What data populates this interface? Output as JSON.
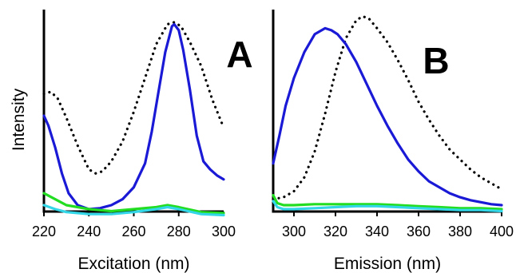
{
  "figure": {
    "ylabel": "Intensity"
  },
  "chart_data": [
    {
      "type": "line",
      "panel_label": "A",
      "xlabel": "Excitation (nm)",
      "ylabel": "Intensity",
      "xlim": [
        220,
        300
      ],
      "ylim": [
        0,
        100
      ],
      "xticks": [
        220,
        240,
        260,
        280,
        300
      ],
      "series": [
        {
          "color": "#000000",
          "dash": "dotted",
          "x": [
            220,
            223,
            226,
            230,
            235,
            240,
            243,
            246,
            250,
            255,
            260,
            265,
            270,
            275,
            278,
            281,
            285,
            290,
            295,
            300
          ],
          "y": [
            58,
            59,
            56,
            46,
            32,
            20,
            18,
            19,
            24,
            34,
            49,
            66,
            83,
            93,
            94,
            92,
            84,
            72,
            55,
            41
          ]
        },
        {
          "color": "#1a1ad6",
          "dash": "solid",
          "x": [
            220,
            222,
            225,
            228,
            231,
            235,
            240,
            245,
            250,
            255,
            260,
            265,
            268,
            271,
            274,
            277,
            278,
            280,
            282,
            285,
            288,
            291,
            294,
            297,
            300
          ],
          "y": [
            47,
            42,
            31,
            18,
            8,
            2,
            0,
            0.5,
            2,
            5,
            11,
            23,
            39,
            59,
            79,
            92,
            93,
            90,
            80,
            60,
            37,
            24,
            20,
            17,
            15
          ]
        },
        {
          "color": "#22dd22",
          "dash": "solid",
          "x": [
            220,
            225,
            230,
            240,
            250,
            260,
            270,
            275,
            280,
            290,
            300
          ],
          "y": [
            8,
            5,
            2,
            0,
            -1,
            0,
            1,
            2,
            1,
            -1.5,
            -2
          ]
        },
        {
          "color": "#33d6e6",
          "dash": "solid",
          "x": [
            220,
            225,
            230,
            240,
            250,
            260,
            270,
            275,
            280,
            290,
            300
          ],
          "y": [
            2,
            0,
            -1.5,
            -2.5,
            -2.5,
            -1.5,
            0,
            1,
            0,
            -2.5,
            -3
          ]
        }
      ]
    },
    {
      "type": "line",
      "panel_label": "B",
      "xlabel": "Emission (nm)",
      "ylabel": "",
      "xlim": [
        290,
        400
      ],
      "ylim": [
        0,
        100
      ],
      "xticks": [
        300,
        320,
        340,
        360,
        380,
        400
      ],
      "series": [
        {
          "color": "#000000",
          "dash": "dotted",
          "x": [
            290,
            295,
            300,
            305,
            310,
            315,
            320,
            325,
            330,
            333,
            336,
            340,
            345,
            350,
            355,
            360,
            365,
            370,
            375,
            380,
            385,
            390,
            395,
            400
          ],
          "y": [
            5,
            6,
            9,
            16,
            29,
            48,
            69,
            86,
            95,
            97,
            96,
            91,
            84,
            75,
            65,
            54,
            45,
            37,
            30,
            25,
            20,
            16,
            13,
            10
          ]
        },
        {
          "color": "#1a1ad6",
          "dash": "solid",
          "x": [
            290,
            293,
            296,
            300,
            305,
            310,
            315,
            318,
            321,
            325,
            330,
            335,
            340,
            345,
            350,
            355,
            360,
            365,
            370,
            375,
            380,
            385,
            390,
            395,
            400
          ],
          "y": [
            23,
            37,
            52,
            66,
            79,
            88,
            91,
            90,
            88,
            83,
            74,
            63,
            52,
            42,
            33,
            25,
            19,
            14,
            11,
            8,
            6,
            4.5,
            3.5,
            2.5,
            2
          ]
        },
        {
          "color": "#22dd22",
          "dash": "solid",
          "x": [
            290,
            292,
            295,
            300,
            310,
            320,
            330,
            340,
            350,
            360,
            370,
            380,
            390,
            400
          ],
          "y": [
            7,
            3,
            2,
            2,
            2.5,
            2.5,
            2.5,
            2.5,
            2,
            1.5,
            1,
            0.5,
            0.5,
            0
          ]
        },
        {
          "color": "#33d6e6",
          "dash": "solid",
          "x": [
            290,
            292,
            295,
            300,
            310,
            320,
            330,
            340,
            350,
            360,
            370,
            380,
            390,
            400
          ],
          "y": [
            4,
            1,
            0,
            0,
            0.5,
            1,
            1.5,
            1.5,
            1,
            0.5,
            0,
            -0.5,
            -0.5,
            -1
          ]
        }
      ]
    }
  ]
}
